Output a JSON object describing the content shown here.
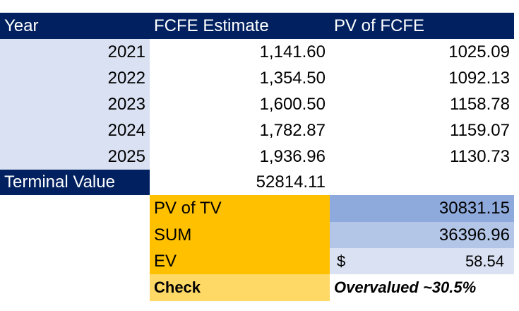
{
  "header": {
    "year": "Year",
    "fcfe_estimate": "FCFE Estimate",
    "pv_of_fcfe": "PV of FCFE"
  },
  "rows": [
    {
      "year": "2021",
      "fcfe": "1,141.60",
      "pv": "1025.09"
    },
    {
      "year": "2022",
      "fcfe": "1,354.50",
      "pv": "1092.13"
    },
    {
      "year": "2023",
      "fcfe": "1,600.50",
      "pv": "1158.78"
    },
    {
      "year": "2024",
      "fcfe": "1,782.87",
      "pv": "1159.07"
    },
    {
      "year": "2025",
      "fcfe": "1,936.96",
      "pv": "1130.73"
    }
  ],
  "terminal": {
    "label": "Terminal Value",
    "value": "52814.11"
  },
  "summary": {
    "pv_tv_label": "PV of TV",
    "pv_tv_value": "30831.15",
    "sum_label": "SUM",
    "sum_value": "36396.96",
    "ev_label": "EV",
    "ev_currency": "$",
    "ev_value": "58.54",
    "check_label": "Check",
    "check_value": "Overvalued ~30.5%"
  },
  "colors": {
    "header_bg": "#002060",
    "year_bg": "#D9E1F2",
    "orange": "#FFC000",
    "yellow": "#FFD966",
    "blue_mid": "#8EA9DB",
    "blue_light": "#B4C6E7",
    "blue_pale": "#D9E1F2"
  }
}
